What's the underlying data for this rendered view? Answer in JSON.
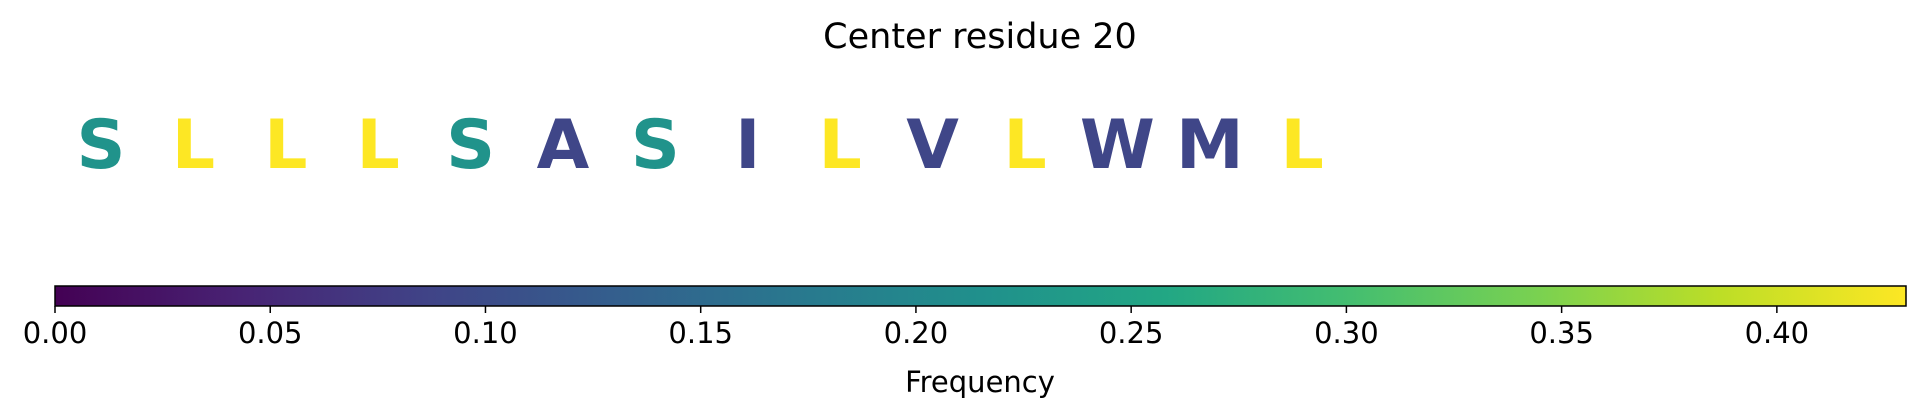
{
  "chart_data": {
    "type": "heatmap",
    "title": "Center residue 20",
    "residues": [
      {
        "letter": "S",
        "frequency": 0.22
      },
      {
        "letter": "L",
        "frequency": 0.43
      },
      {
        "letter": "L",
        "frequency": 0.43
      },
      {
        "letter": "L",
        "frequency": 0.43
      },
      {
        "letter": "S",
        "frequency": 0.22
      },
      {
        "letter": "A",
        "frequency": 0.09
      },
      {
        "letter": "S",
        "frequency": 0.22
      },
      {
        "letter": "I",
        "frequency": 0.09
      },
      {
        "letter": "L",
        "frequency": 0.43
      },
      {
        "letter": "V",
        "frequency": 0.09
      },
      {
        "letter": "L",
        "frequency": 0.43
      },
      {
        "letter": "W",
        "frequency": 0.09
      },
      {
        "letter": "M",
        "frequency": 0.09
      },
      {
        "letter": "L",
        "frequency": 0.43
      }
    ],
    "colorbar": {
      "colormap": "viridis",
      "range": [
        0,
        0.43
      ],
      "ticks": [
        0.0,
        0.05,
        0.1,
        0.15,
        0.2,
        0.25,
        0.3,
        0.35,
        0.4
      ],
      "tick_labels": [
        "0.00",
        "0.05",
        "0.10",
        "0.15",
        "0.20",
        "0.25",
        "0.30",
        "0.35",
        "0.40"
      ],
      "label": "Frequency"
    }
  }
}
